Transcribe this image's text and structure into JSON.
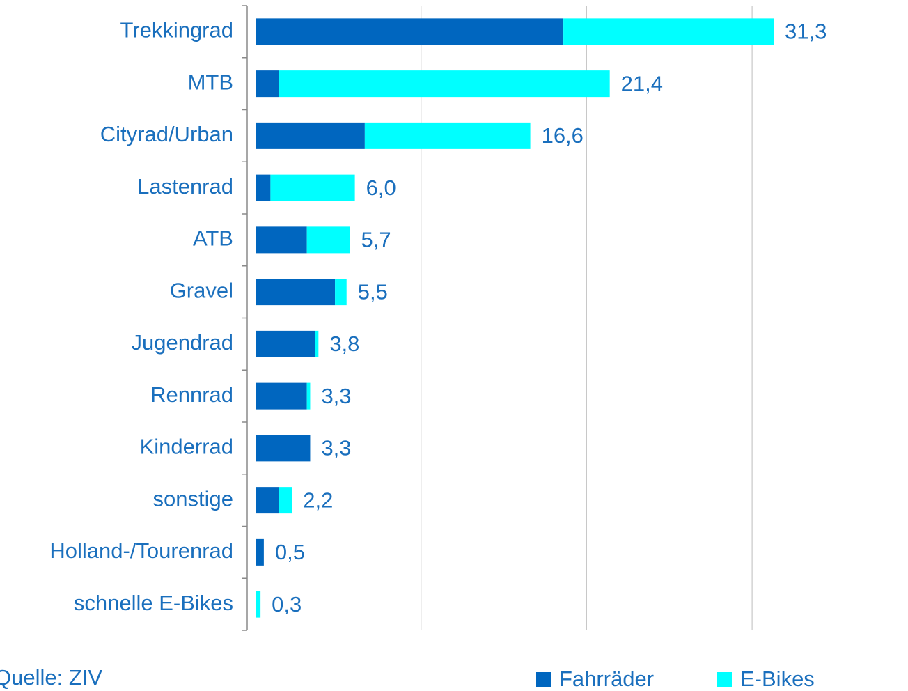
{
  "chart_data": {
    "type": "stacked_barh",
    "categories": [
      "Trekkingrad",
      "MTB",
      "Cityrad/Urban",
      "Lastenrad",
      "ATB",
      "Gravel",
      "Jugendrad",
      "Rennrad",
      "Kinderrad",
      "sonstige",
      "Holland-/Tourenrad",
      "schnelle E-Bikes"
    ],
    "series": [
      {
        "name": "Fahrräder",
        "color": "#0066bf",
        "values": [
          18.6,
          1.4,
          6.6,
          0.9,
          3.1,
          4.8,
          3.6,
          3.1,
          3.3,
          1.4,
          0.5,
          0
        ]
      },
      {
        "name": "E-Bikes",
        "color": "#00ffff",
        "values": [
          12.7,
          20.0,
          10.0,
          5.1,
          2.6,
          0.7,
          0.2,
          0.2,
          0,
          0.8,
          0,
          0.3
        ]
      }
    ],
    "totals": [
      31.3,
      21.4,
      16.6,
      6.0,
      5.7,
      5.5,
      3.8,
      3.3,
      3.3,
      2.2,
      0.5,
      0.3
    ],
    "total_labels": [
      "31,3",
      "21,4",
      "16,6",
      "6,0",
      "5,7",
      "5,5",
      "3,8",
      "3,3",
      "3,3",
      "2,2",
      "0,5",
      "0,3"
    ],
    "xlim": [
      0,
      35
    ],
    "xticks": [
      0,
      10,
      20,
      30
    ],
    "grid": true,
    "source": "Quelle: ZIV"
  }
}
